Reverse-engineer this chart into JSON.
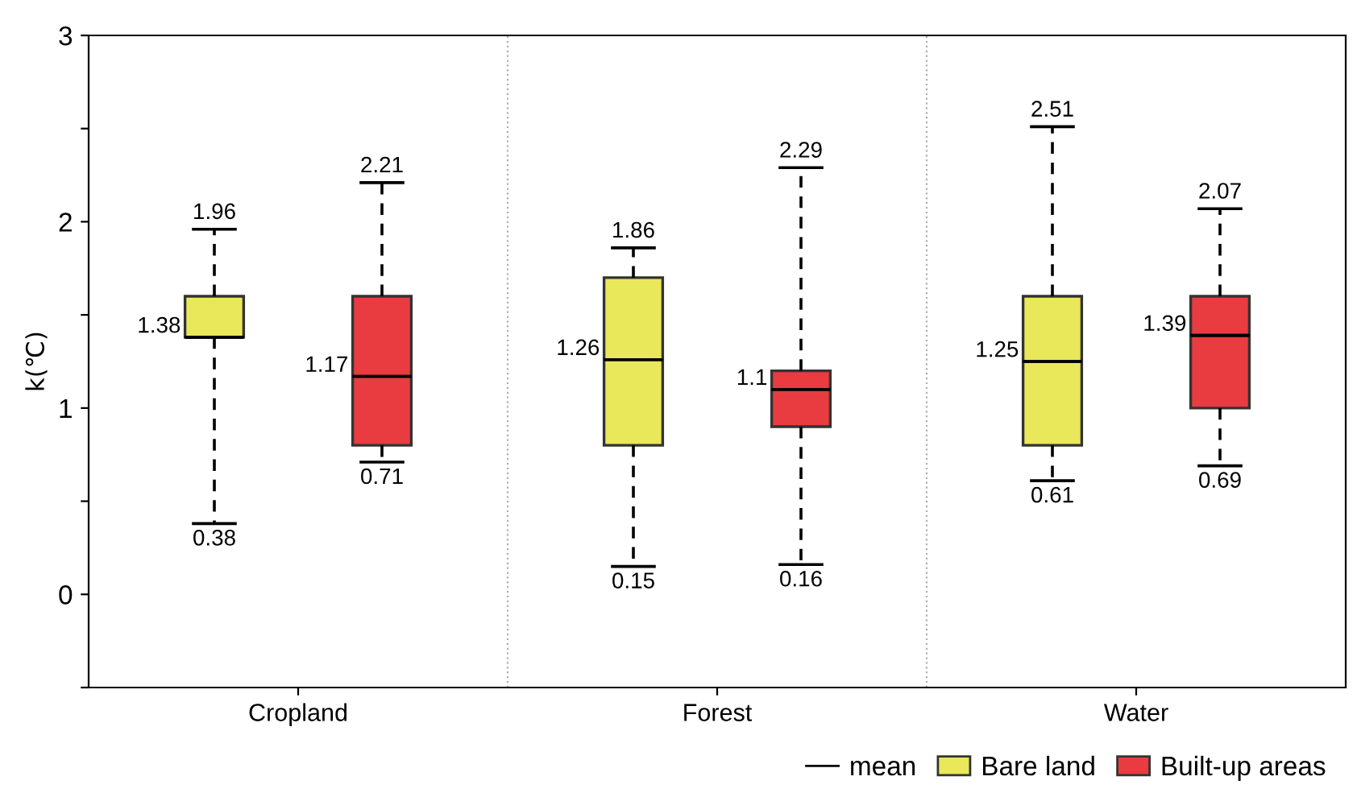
{
  "chart_data": {
    "type": "box",
    "ylabel": "k(℃)",
    "categories": [
      "Cropland",
      "Forest",
      "Water"
    ],
    "series": [
      {
        "name": "Bare land",
        "color": "#e8e85a",
        "boxes": [
          {
            "low": 0.38,
            "q1": 1.38,
            "median": 1.38,
            "mean": 1.38,
            "q3": 1.6,
            "high": 1.96
          },
          {
            "low": 0.15,
            "q1": 0.8,
            "median": 1.26,
            "mean": 1.26,
            "q3": 1.7,
            "high": 1.86
          },
          {
            "low": 0.61,
            "q1": 0.8,
            "median": 1.25,
            "mean": 1.25,
            "q3": 1.6,
            "high": 2.51
          }
        ],
        "value_labels": [
          [
            "1.96",
            "1.38",
            "0.38"
          ],
          [
            "1.86",
            "1.26",
            "0.15"
          ],
          [
            "2.51",
            "1.25",
            "0.61"
          ]
        ]
      },
      {
        "name": "Built-up areas",
        "color": "#e83c40",
        "boxes": [
          {
            "low": 0.71,
            "q1": 0.8,
            "median": 1.17,
            "mean": 1.17,
            "q3": 1.6,
            "high": 2.21
          },
          {
            "low": 0.16,
            "q1": 0.9,
            "median": 1.1,
            "mean": 1.1,
            "q3": 1.2,
            "high": 2.29
          },
          {
            "low": 0.69,
            "q1": 1.0,
            "median": 1.39,
            "mean": 1.39,
            "q3": 1.6,
            "high": 2.07
          }
        ],
        "value_labels": [
          [
            "2.21",
            "1.17",
            "0.71"
          ],
          [
            "2.29",
            "1.1",
            "0.16"
          ],
          [
            "2.07",
            "1.39",
            "0.69"
          ]
        ]
      }
    ],
    "annotations": [
      "mean"
    ],
    "ylim": [
      -0.5,
      3
    ],
    "yticks": [
      {
        "value": -0.5,
        "label": null
      },
      0,
      {
        "value": 0.5,
        "label": null
      },
      1,
      {
        "value": 1.5,
        "label": null
      },
      2,
      {
        "value": 2.5,
        "label": null
      },
      3
    ],
    "grid": false,
    "legend": "bottom right"
  }
}
